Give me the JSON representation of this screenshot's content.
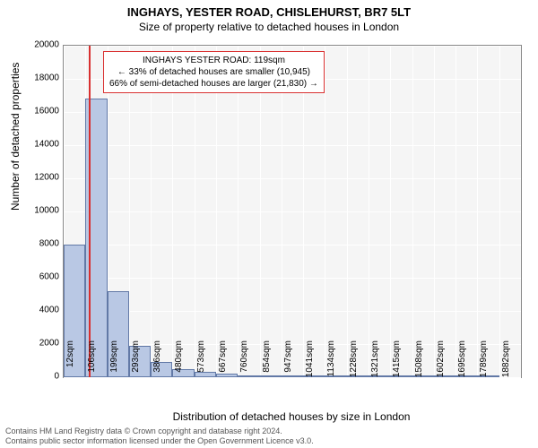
{
  "title": "INGHAYS, YESTER ROAD, CHISLEHURST, BR7 5LT",
  "subtitle": "Size of property relative to detached houses in London",
  "y_axis_label": "Number of detached properties",
  "x_axis_label": "Distribution of detached houses by size in London",
  "chart": {
    "type": "histogram",
    "background_color": "#f5f5f5",
    "grid_color": "#ffffff",
    "bar_fill": "#b9c8e4",
    "bar_border": "#6279a6",
    "marker_color": "#d93030",
    "ylim": [
      0,
      20000
    ],
    "yticks": [
      0,
      2000,
      4000,
      6000,
      8000,
      10000,
      12000,
      14000,
      16000,
      18000,
      20000
    ],
    "xticks": [
      "12sqm",
      "106sqm",
      "199sqm",
      "293sqm",
      "386sqm",
      "480sqm",
      "573sqm",
      "667sqm",
      "760sqm",
      "854sqm",
      "947sqm",
      "1041sqm",
      "1134sqm",
      "1228sqm",
      "1321sqm",
      "1415sqm",
      "1508sqm",
      "1602sqm",
      "1695sqm",
      "1789sqm",
      "1882sqm"
    ],
    "bars": [
      {
        "x_index": 0,
        "value": 8000
      },
      {
        "x_index": 1,
        "value": 16800
      },
      {
        "x_index": 2,
        "value": 5200
      },
      {
        "x_index": 3,
        "value": 1900
      },
      {
        "x_index": 4,
        "value": 900
      },
      {
        "x_index": 5,
        "value": 500
      },
      {
        "x_index": 6,
        "value": 300
      },
      {
        "x_index": 7,
        "value": 200
      },
      {
        "x_index": 8,
        "value": 120
      },
      {
        "x_index": 9,
        "value": 90
      },
      {
        "x_index": 10,
        "value": 70
      },
      {
        "x_index": 11,
        "value": 50
      },
      {
        "x_index": 12,
        "value": 40
      },
      {
        "x_index": 13,
        "value": 30
      },
      {
        "x_index": 14,
        "value": 25
      },
      {
        "x_index": 15,
        "value": 20
      },
      {
        "x_index": 16,
        "value": 15
      },
      {
        "x_index": 17,
        "value": 10
      },
      {
        "x_index": 18,
        "value": 10
      },
      {
        "x_index": 19,
        "value": 8
      }
    ],
    "marker_position": 1.15
  },
  "annotation": {
    "line1": "INGHAYS YESTER ROAD: 119sqm",
    "line2": "← 33% of detached houses are smaller (10,945)",
    "line3": "66% of semi-detached houses are larger (21,830) →"
  },
  "footer": {
    "line1": "Contains HM Land Registry data © Crown copyright and database right 2024.",
    "line2": "Contains public sector information licensed under the Open Government Licence v3.0."
  }
}
